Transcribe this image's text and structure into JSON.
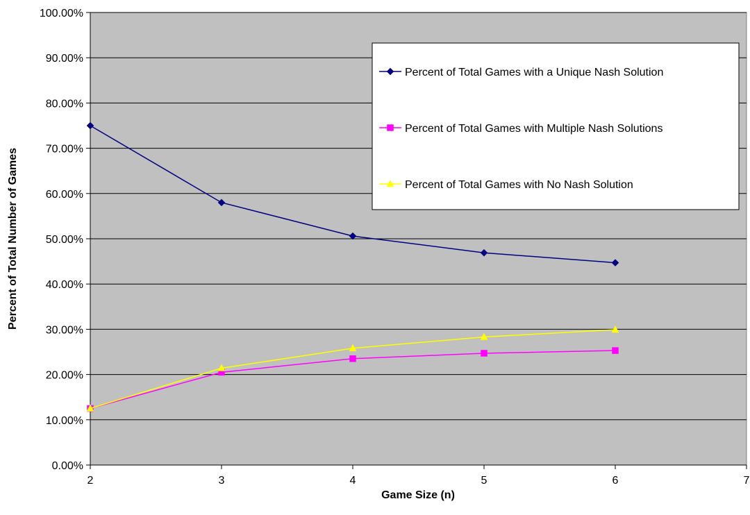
{
  "chart_data": {
    "type": "line",
    "title": "",
    "xlabel": "Game Size (n)",
    "ylabel": "Percent of Total Number of Games",
    "x": [
      2,
      3,
      4,
      5,
      6
    ],
    "xlim": [
      2,
      7
    ],
    "x_ticks": [
      "2",
      "3",
      "4",
      "5",
      "6",
      "7"
    ],
    "ylim": [
      0,
      1
    ],
    "y_ticks": [
      "0.00%",
      "10.00%",
      "20.00%",
      "30.00%",
      "40.00%",
      "50.00%",
      "60.00%",
      "70.00%",
      "80.00%",
      "90.00%",
      "100.00%"
    ],
    "grid": "horizontal",
    "legend_position": "top-right",
    "plot_background": "#c0c0c0",
    "series": [
      {
        "name": "Percent of Total Games with a Unique Nash Solution",
        "values": [
          0.75,
          0.58,
          0.506,
          0.469,
          0.447
        ],
        "color": "#000080",
        "marker": "diamond"
      },
      {
        "name": "Percent of Total Games with Multiple Nash Solutions",
        "values": [
          0.125,
          0.205,
          0.235,
          0.247,
          0.253
        ],
        "color": "#ff00ff",
        "marker": "square"
      },
      {
        "name": "Percent of Total Games with No Nash Solution",
        "values": [
          0.125,
          0.214,
          0.258,
          0.283,
          0.299
        ],
        "color": "#ffff00",
        "marker": "triangle"
      }
    ]
  }
}
